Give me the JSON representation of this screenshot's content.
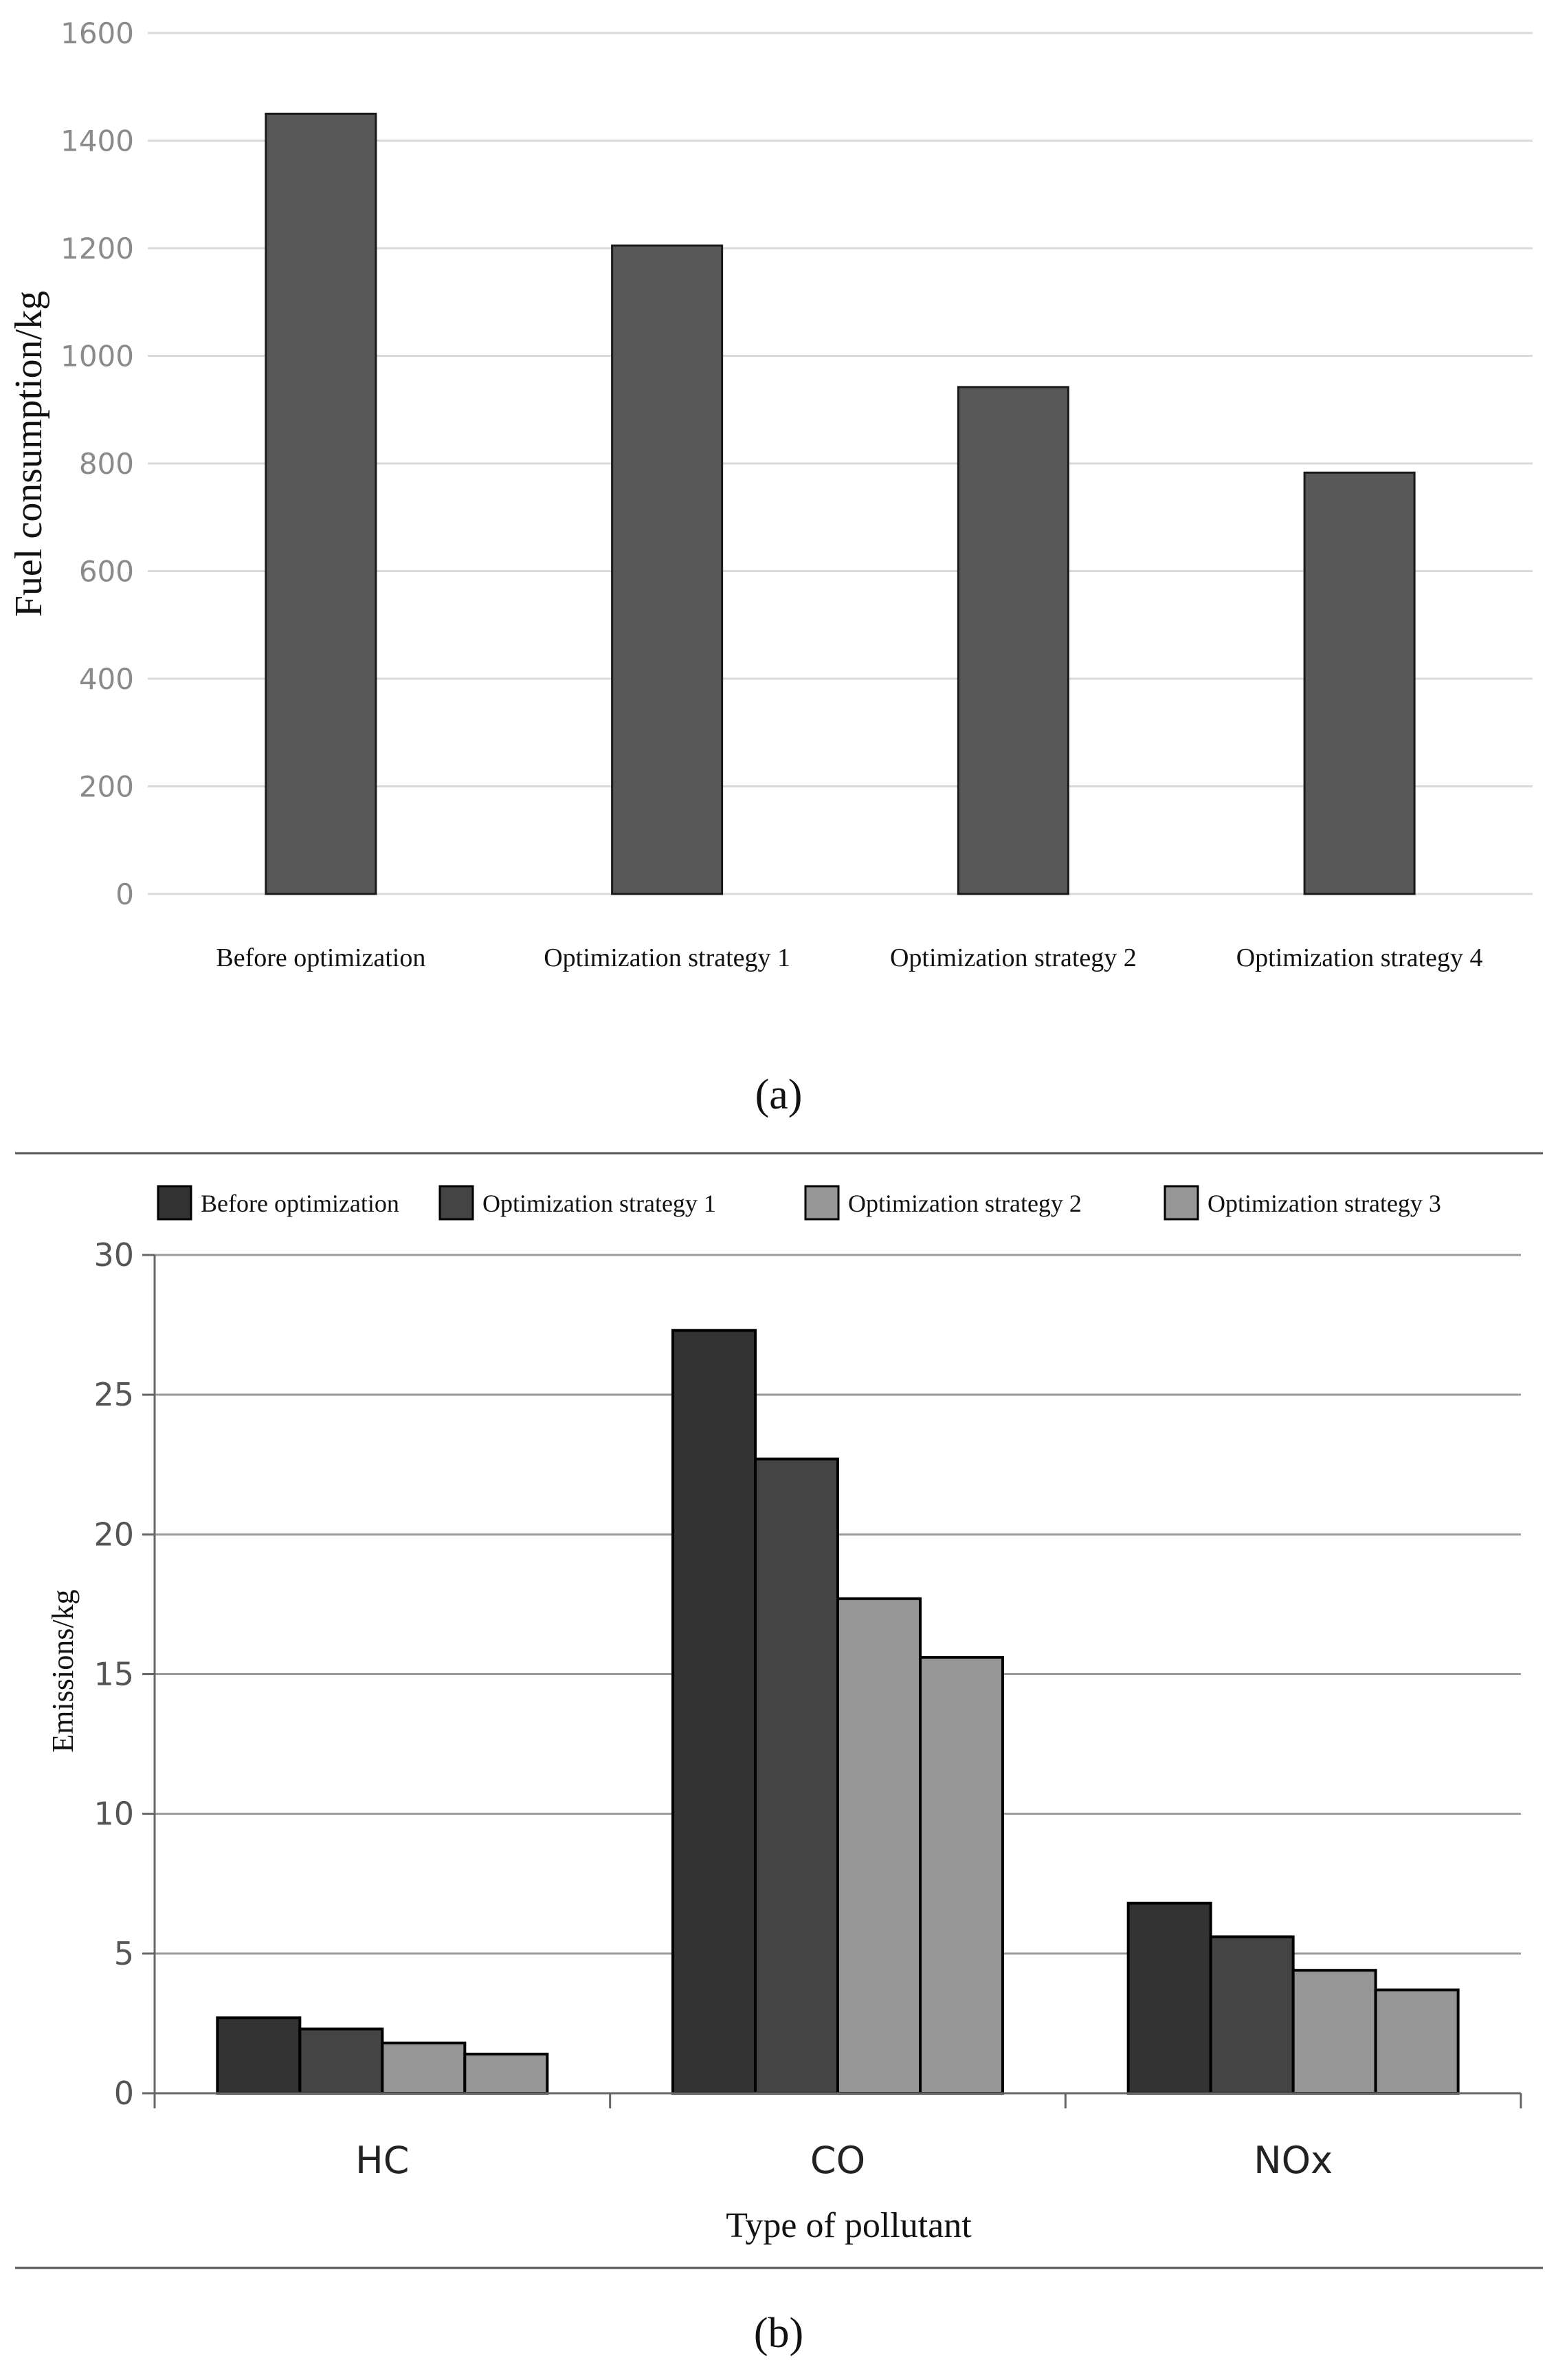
{
  "chart_data": [
    {
      "type": "bar",
      "panel_label": "a",
      "title": "",
      "xlabel": "",
      "ylabel": "Fuel consumption/kg",
      "ylim": [
        0,
        1600
      ],
      "yticks": [
        "0",
        "200",
        "400",
        "600",
        "800",
        "1000",
        "1200",
        "1400",
        "1600"
      ],
      "categories": [
        "Before optimization",
        "Optimization strategy 1",
        "Optimization strategy 2",
        "Optimization strategy 4"
      ],
      "values": [
        1450,
        1205,
        942,
        783
      ],
      "grid": true,
      "legend": "none",
      "colors": {
        "bar": "#585858",
        "grid": "#d9d9d9",
        "tick": "#8a8a8a"
      }
    },
    {
      "type": "bar",
      "panel_label": "b",
      "title": "",
      "xlabel": "Type of pollutant",
      "ylabel": "Emissions/kg",
      "ylim": [
        0,
        30
      ],
      "yticks": [
        "0",
        "5",
        "10",
        "15",
        "20",
        "25",
        "30"
      ],
      "categories": [
        "HC",
        "CO",
        "NOx"
      ],
      "series": [
        {
          "name": "Before optimization",
          "values": [
            2.7,
            27.3,
            6.8
          ],
          "color": "#333333"
        },
        {
          "name": "Optimization strategy 1",
          "values": [
            2.3,
            22.7,
            5.6
          ],
          "color": "#444444"
        },
        {
          "name": "Optimization strategy 2",
          "values": [
            1.8,
            17.7,
            4.4
          ],
          "color": "#969696"
        },
        {
          "name": "Optimization strategy 3",
          "values": [
            1.4,
            15.6,
            3.7
          ],
          "color": "#969696"
        }
      ],
      "grid": true,
      "legend": "top",
      "colors": {
        "grid": "#9a9a9a",
        "axis": "#666666",
        "tick": "#555555"
      }
    }
  ]
}
